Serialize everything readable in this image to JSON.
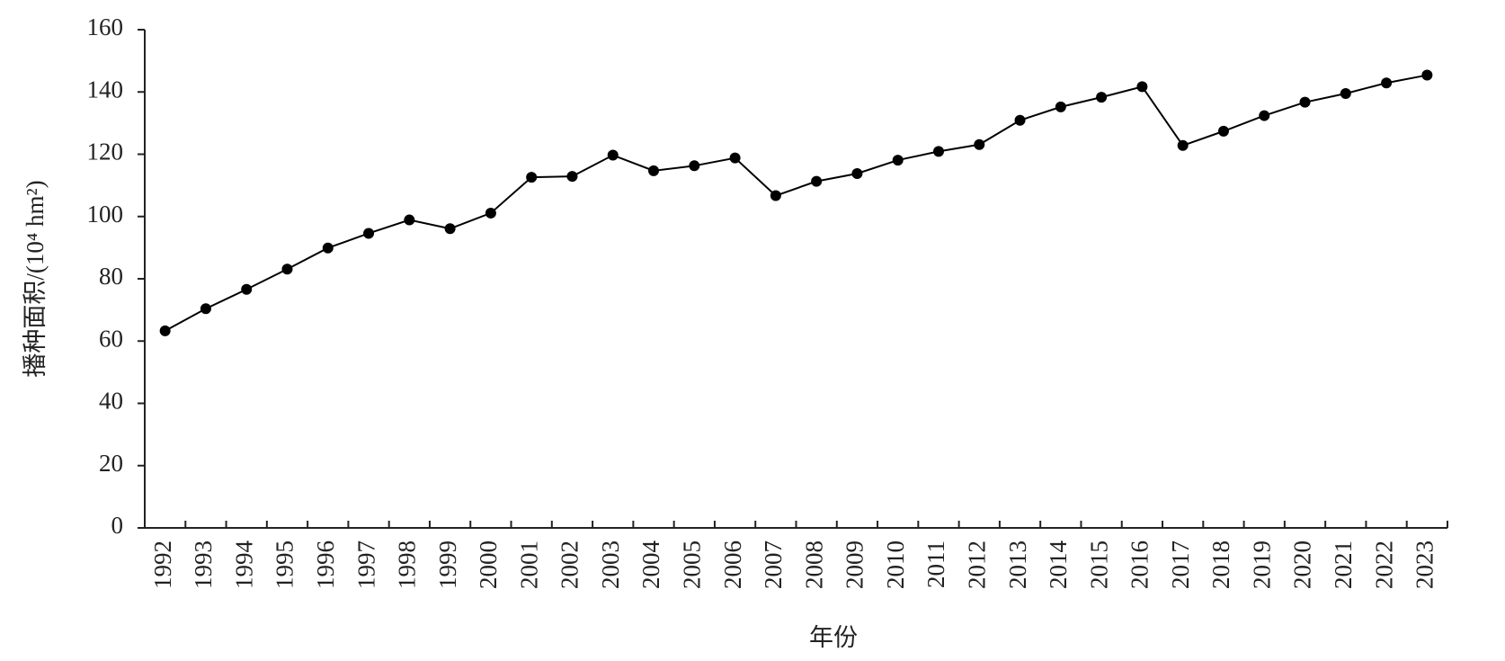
{
  "chart_data": {
    "type": "line",
    "y_label": "播种面积/(10⁴ hm²)",
    "x_label": "年份",
    "categories": [
      "1992",
      "1993",
      "1994",
      "1995",
      "1996",
      "1997",
      "1998",
      "1999",
      "2000",
      "2001",
      "2002",
      "2003",
      "2004",
      "2005",
      "2006",
      "2007",
      "2008",
      "2009",
      "2010",
      "2011",
      "2012",
      "2013",
      "2014",
      "2015",
      "2016",
      "2017",
      "2018",
      "2019",
      "2020",
      "2021",
      "2022",
      "2023"
    ],
    "values": [
      63.3,
      70.4,
      76.6,
      83.1,
      89.9,
      94.6,
      98.9,
      96.1,
      101.1,
      112.6,
      112.9,
      119.7,
      114.7,
      116.3,
      118.8,
      106.7,
      111.3,
      113.8,
      118.1,
      120.9,
      123.1,
      130.9,
      135.2,
      138.3,
      141.7,
      122.8,
      127.4,
      132.4,
      136.7,
      139.5,
      142.9,
      145.4
    ],
    "color": "#000000",
    "ylim": [
      0,
      160
    ],
    "yticks": [
      0,
      20,
      40,
      60,
      80,
      100,
      120,
      140,
      160
    ]
  }
}
